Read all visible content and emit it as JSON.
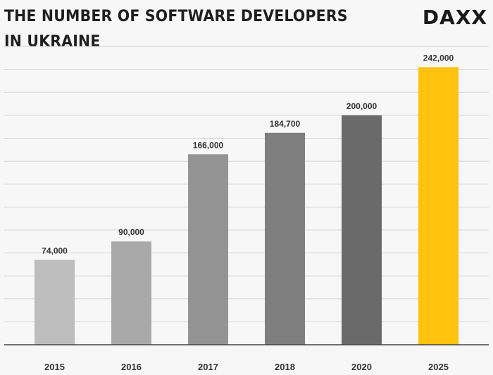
{
  "header": {
    "title_line1": "THE NUMBER OF SOFTWARE DEVELOPERS",
    "title_line2": "IN UKRAINE",
    "logo_text": "DAXX"
  },
  "colors": {
    "bars": [
      "#bdbdbd",
      "#a9a9a9",
      "#949494",
      "#7e7e7e",
      "#6a6a6a",
      "#ffc20e"
    ],
    "grid": "#d6d6d6",
    "axis": "#444444",
    "background": "#f7f7f7"
  },
  "chart_data": {
    "type": "bar",
    "title": "THE NUMBER OF SOFTWARE DEVELOPERS IN UKRAINE",
    "categories": [
      "2015",
      "2016",
      "2017",
      "2018",
      "2020",
      "2025"
    ],
    "values": [
      74000,
      90000,
      166000,
      184700,
      200000,
      242000
    ],
    "value_labels": [
      "74,000",
      "90,000",
      "166,000",
      "184,700",
      "200,000",
      "242,000"
    ],
    "xlabel": "",
    "ylabel": "",
    "ylim": [
      0,
      260000
    ],
    "grid": true,
    "grid_step": 20000
  }
}
